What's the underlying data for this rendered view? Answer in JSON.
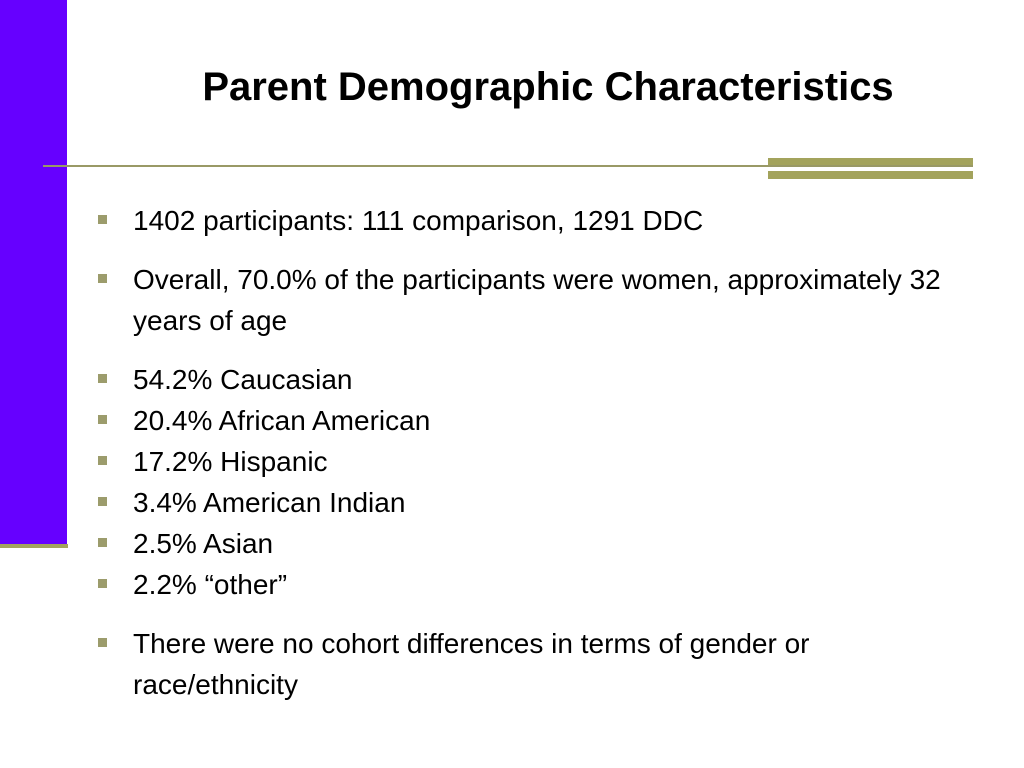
{
  "slide": {
    "title": "Parent Demographic Characteristics",
    "bullets": [
      "1402 participants: 111 comparison, 1291 DDC",
      "Overall, 70.0% of the participants were women, approximately 32 years of age",
      "54.2% Caucasian",
      "20.4% African American",
      "17.2% Hispanic",
      "3.4% American Indian",
      "2.5% Asian",
      "2.2% “other”",
      "There were no cohort differences in terms of gender or race/ethnicity"
    ]
  },
  "colors": {
    "accent_bar": "#6600ff",
    "rule": "#a3a35c",
    "bullet_marker": "#9c9c6c"
  }
}
